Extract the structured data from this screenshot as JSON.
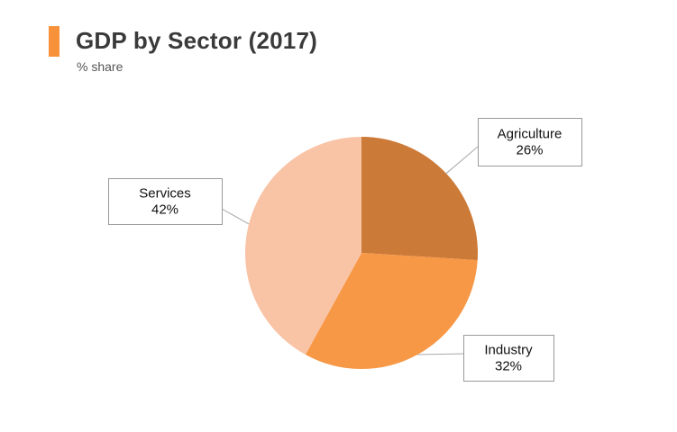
{
  "header": {
    "title": "GDP by Sector (2017)",
    "subtitle": "% share",
    "accent_color": "#f7923a"
  },
  "chart_data": {
    "type": "pie",
    "title": "GDP by Sector (2017)",
    "subtitle": "% share",
    "slices": [
      {
        "label": "Agriculture",
        "value": 26,
        "value_label": "26%",
        "color": "#cc7a38"
      },
      {
        "label": "Industry",
        "value": 32,
        "value_label": "32%",
        "color": "#f79846"
      },
      {
        "label": "Services",
        "value": 42,
        "value_label": "42%",
        "color": "#f9c3a6"
      }
    ]
  }
}
